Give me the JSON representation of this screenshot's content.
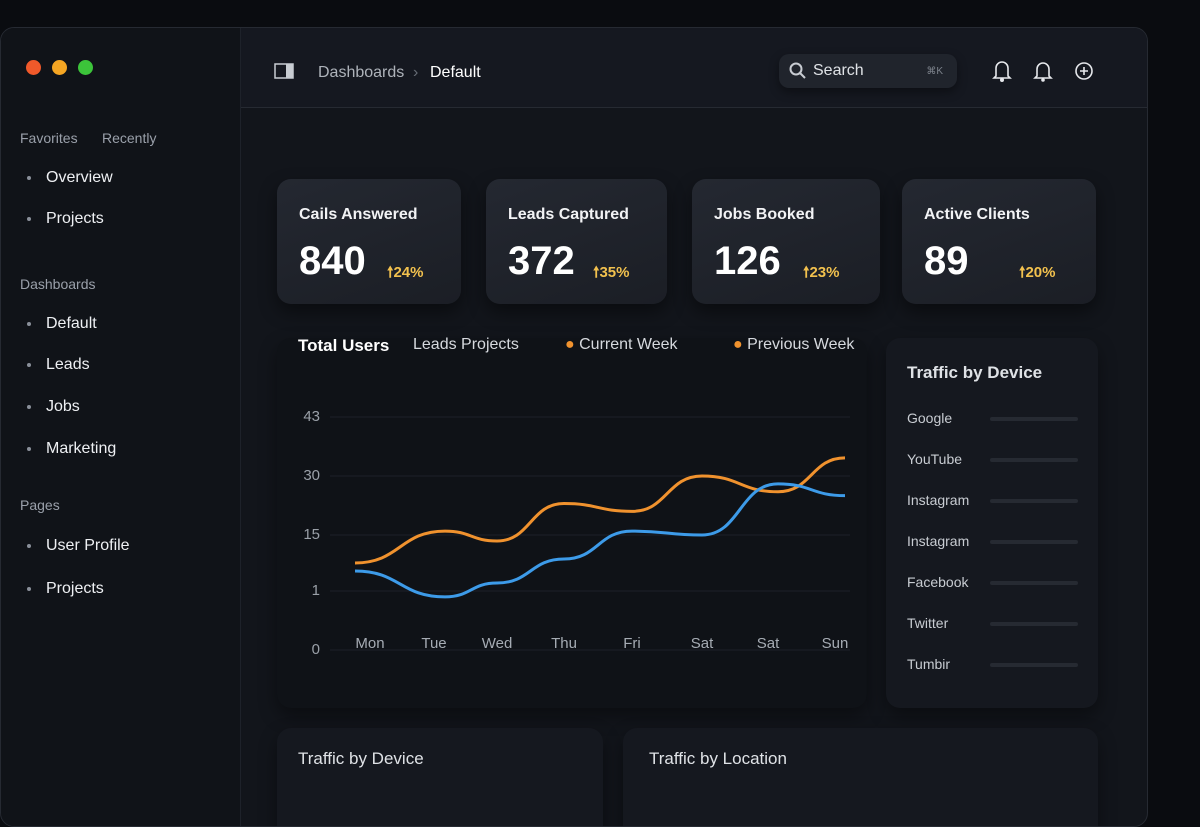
{
  "sidebar": {
    "window_controls": {
      "close": "#f0592a",
      "minimize": "#f5a623",
      "maximize": "#3cc43a"
    },
    "tabs": [
      "Favorites",
      "Recently"
    ],
    "favorites": [
      "Overview",
      "Projects"
    ],
    "dashboards_label": "Dashboards",
    "dashboards": [
      "Default",
      "Leads",
      "Jobs",
      "Marketing"
    ],
    "pages_label": "Pages",
    "pages": [
      "User Profile",
      "Projects"
    ]
  },
  "header": {
    "breadcrumb": [
      "Dashboards",
      "Default"
    ],
    "search_placeholder": "Search",
    "search_shortcut": "⌘K",
    "icons": [
      "sidebar-toggle-icon",
      "bell-icon",
      "bell-icon",
      "add-circle-icon"
    ]
  },
  "stats": [
    {
      "title": "Cails Answered",
      "value": "840",
      "delta": "24%"
    },
    {
      "title": "Leads Captured",
      "value": "372",
      "delta": "35%"
    },
    {
      "title": "Jobs Booked",
      "value": "126",
      "delta": "23%"
    },
    {
      "title": "Active Clients",
      "value": "89",
      "delta": "20%"
    }
  ],
  "chart_data": {
    "type": "line",
    "title": "Total Users",
    "subtitle": "Leads Projects",
    "categories": [
      "Mon",
      "Tue",
      "Wed",
      "Thu",
      "Fri",
      "Sat",
      "Sat",
      "Sun"
    ],
    "y_ticks": [
      0,
      1,
      15,
      30,
      43
    ],
    "series": [
      {
        "name": "Current Week",
        "color": "#f0922e",
        "values": [
          8,
          16,
          13.5,
          23,
          21,
          30,
          26,
          34
        ]
      },
      {
        "name": "Previous Week",
        "color": "#3d9be9",
        "values": [
          6,
          0.9,
          3,
          9,
          16,
          15,
          28,
          25
        ]
      }
    ],
    "legend": "top-right",
    "grid": true
  },
  "traffic": {
    "title": "Traffic by Device",
    "items": [
      "Google",
      "YouTube",
      "Instagram",
      "Instagram",
      "Facebook",
      "Twitter",
      "Tumbir"
    ]
  },
  "bottom": {
    "left_title": "Traffic by Device",
    "right_title": "Traffic by Location"
  }
}
